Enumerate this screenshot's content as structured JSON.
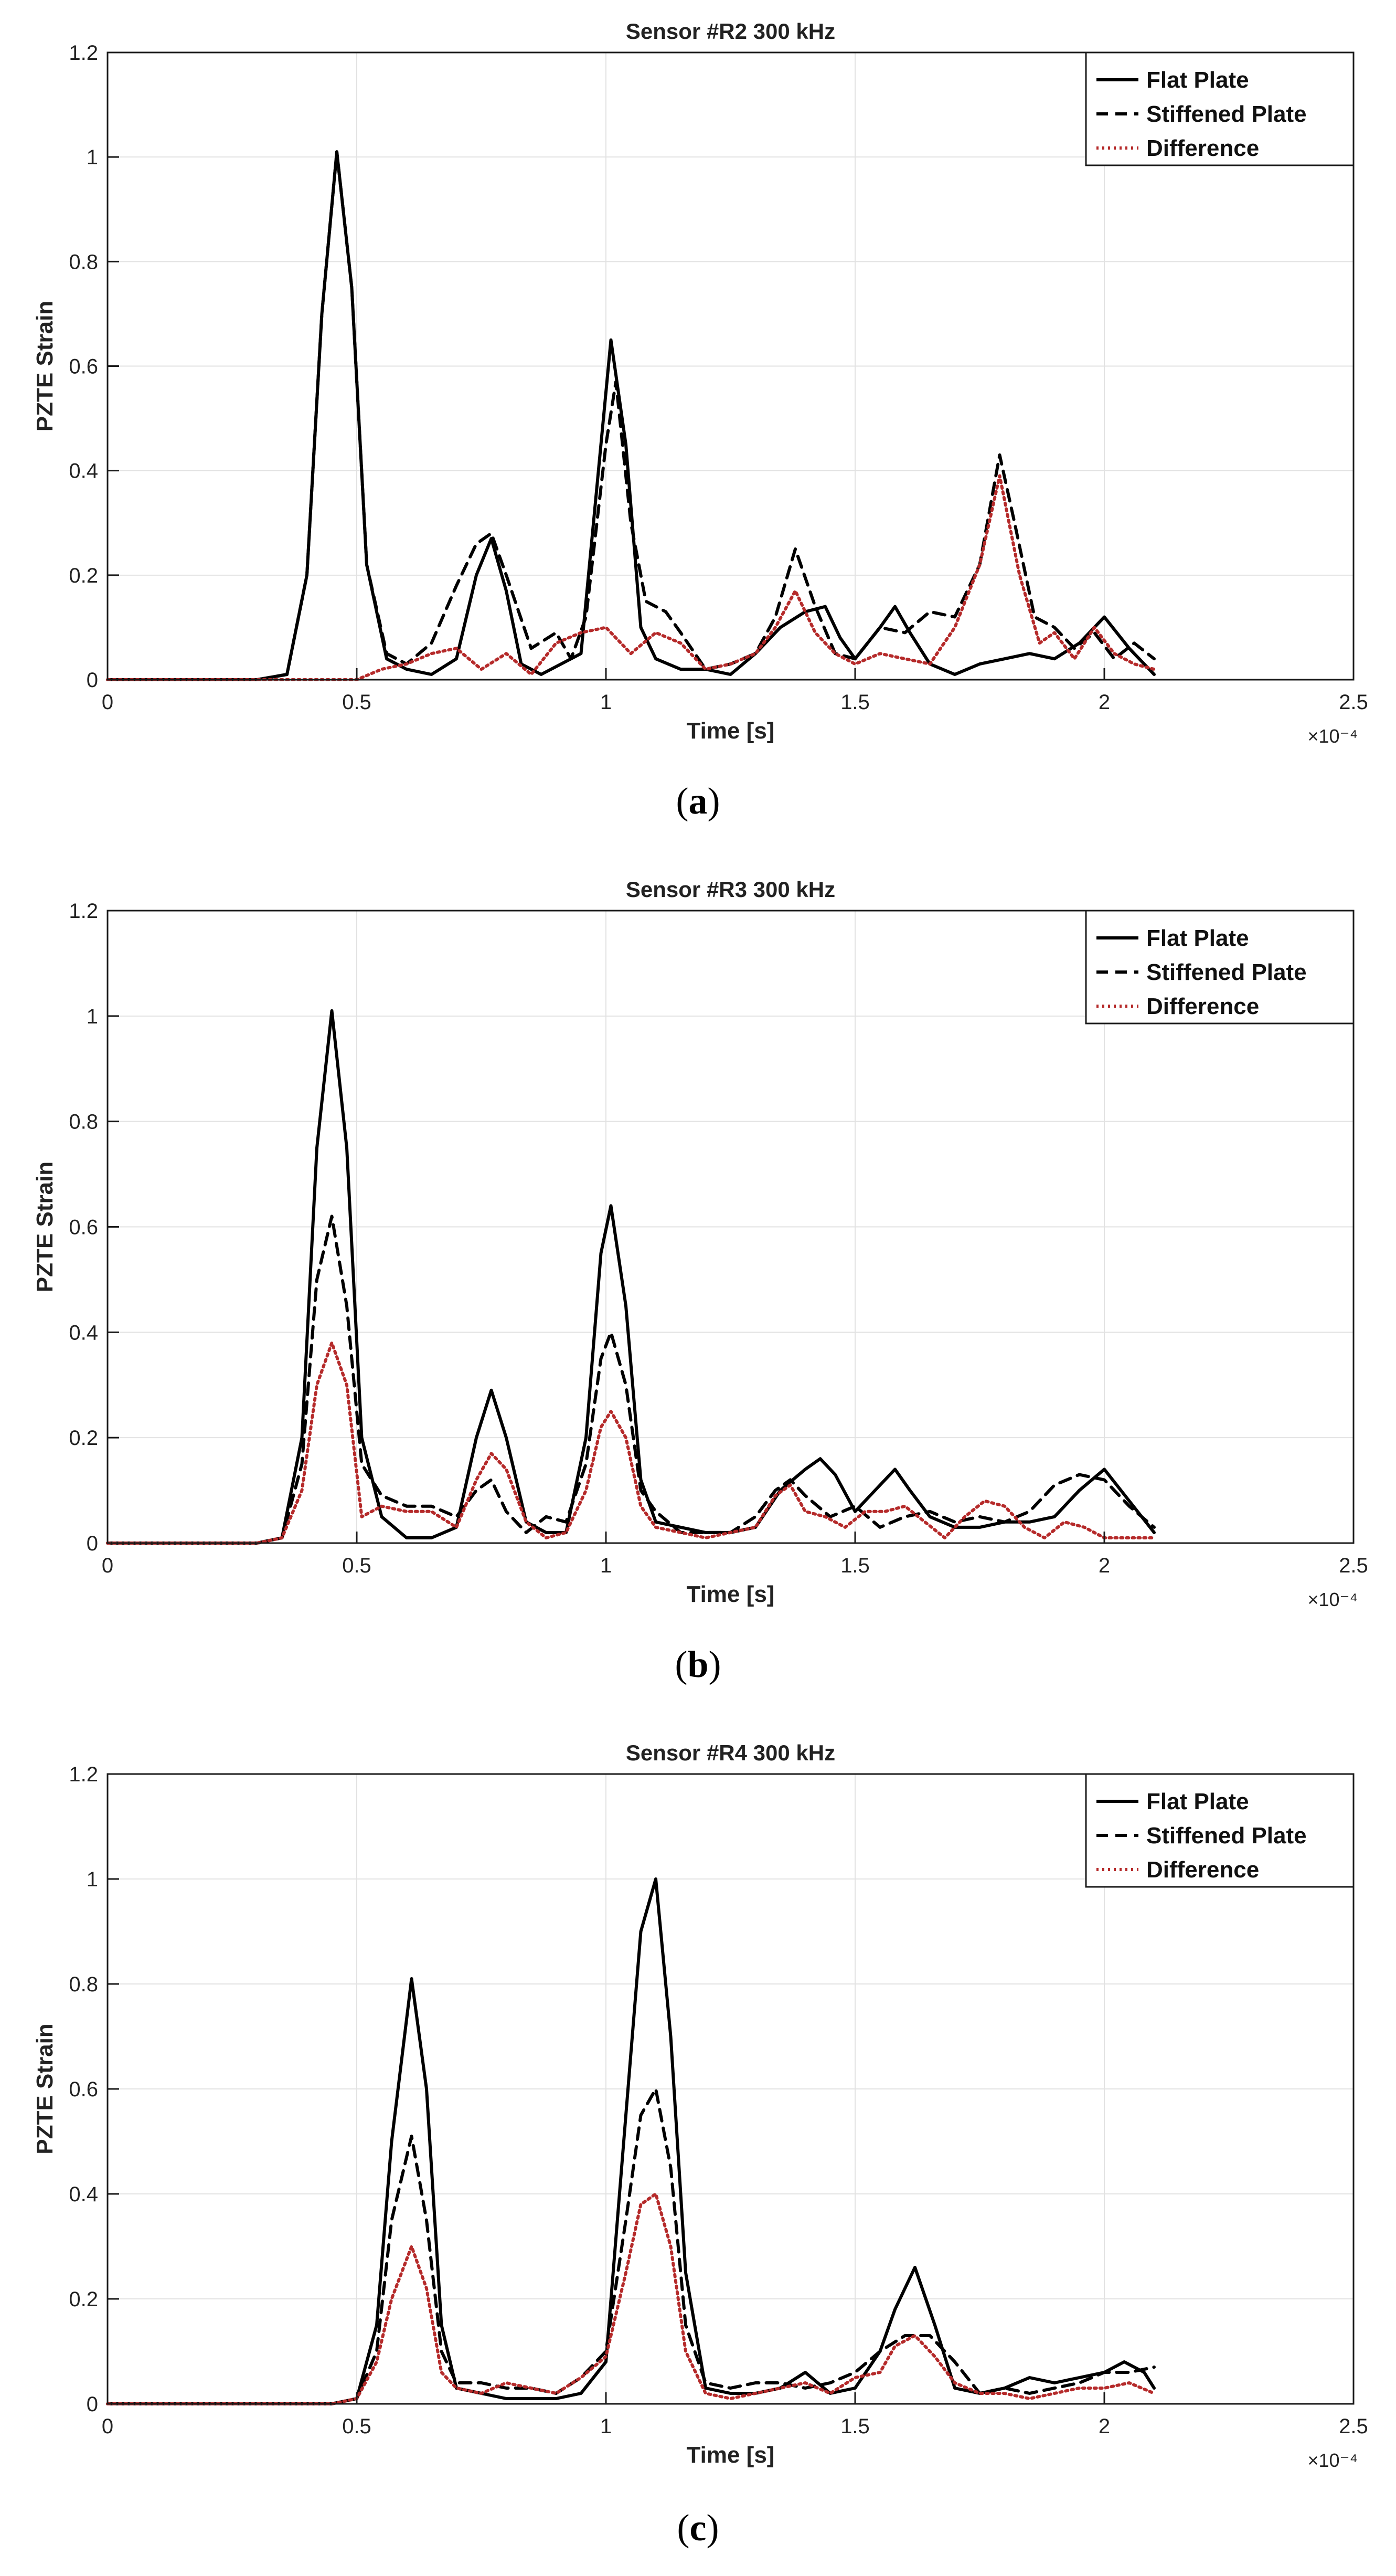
{
  "chart_data": [
    {
      "type": "line",
      "title": "Sensor #R2 300 kHz",
      "xlabel": "Time [s]",
      "ylabel": "PZTE Strain",
      "x_exponent": "×10⁻⁴",
      "xlim": [
        0,
        2.5
      ],
      "ylim": [
        0,
        1.2
      ],
      "x_ticks": [
        "0",
        "0.5",
        "1",
        "1.5",
        "2",
        "2.5"
      ],
      "y_ticks": [
        "0",
        "0.2",
        "0.4",
        "0.6",
        "0.8",
        "1",
        "1.2"
      ],
      "grid": true,
      "legend_position": "top-right",
      "caption_open": "(",
      "caption_letter": "a",
      "caption_close": ")",
      "series": [
        {
          "name": "Flat Plate",
          "style": "solid",
          "color": "#000000",
          "x": [
            0,
            0.3,
            0.36,
            0.4,
            0.43,
            0.46,
            0.49,
            0.52,
            0.56,
            0.6,
            0.65,
            0.7,
            0.74,
            0.77,
            0.8,
            0.83,
            0.87,
            0.91,
            0.95,
            0.98,
            1.01,
            1.04,
            1.07,
            1.1,
            1.15,
            1.2,
            1.25,
            1.3,
            1.35,
            1.4,
            1.44,
            1.47,
            1.5,
            1.55,
            1.58,
            1.61,
            1.65,
            1.7,
            1.75,
            1.8,
            1.85,
            1.9,
            1.95,
            2.0,
            2.05,
            2.1
          ],
          "y": [
            0,
            0,
            0.01,
            0.2,
            0.7,
            1.01,
            0.75,
            0.22,
            0.04,
            0.02,
            0.01,
            0.04,
            0.2,
            0.27,
            0.17,
            0.03,
            0.01,
            0.03,
            0.05,
            0.35,
            0.65,
            0.45,
            0.1,
            0.04,
            0.02,
            0.02,
            0.01,
            0.05,
            0.1,
            0.13,
            0.14,
            0.08,
            0.04,
            0.1,
            0.14,
            0.09,
            0.03,
            0.01,
            0.03,
            0.04,
            0.05,
            0.04,
            0.07,
            0.12,
            0.06,
            0.01
          ]
        },
        {
          "name": "Stiffened Plate",
          "style": "dashed",
          "color": "#000000",
          "x": [
            0,
            0.3,
            0.36,
            0.4,
            0.43,
            0.46,
            0.49,
            0.52,
            0.56,
            0.6,
            0.65,
            0.7,
            0.74,
            0.77,
            0.8,
            0.85,
            0.9,
            0.93,
            0.96,
            1.0,
            1.02,
            1.05,
            1.08,
            1.12,
            1.15,
            1.2,
            1.25,
            1.3,
            1.34,
            1.38,
            1.42,
            1.46,
            1.5,
            1.55,
            1.6,
            1.65,
            1.7,
            1.75,
            1.79,
            1.82,
            1.86,
            1.9,
            1.94,
            1.98,
            2.02,
            2.06,
            2.1
          ],
          "y": [
            0,
            0,
            0.01,
            0.2,
            0.7,
            1.01,
            0.75,
            0.22,
            0.05,
            0.03,
            0.07,
            0.18,
            0.26,
            0.28,
            0.2,
            0.06,
            0.09,
            0.04,
            0.12,
            0.45,
            0.57,
            0.3,
            0.15,
            0.13,
            0.09,
            0.02,
            0.03,
            0.05,
            0.12,
            0.25,
            0.14,
            0.05,
            0.04,
            0.1,
            0.09,
            0.13,
            0.12,
            0.22,
            0.43,
            0.3,
            0.12,
            0.1,
            0.06,
            0.09,
            0.04,
            0.07,
            0.04
          ]
        },
        {
          "name": "Difference",
          "style": "dotted",
          "color": "#b52a2a",
          "x": [
            0,
            0.5,
            0.55,
            0.6,
            0.65,
            0.7,
            0.75,
            0.8,
            0.85,
            0.9,
            0.95,
            1.0,
            1.05,
            1.1,
            1.15,
            1.2,
            1.25,
            1.3,
            1.34,
            1.38,
            1.42,
            1.46,
            1.5,
            1.55,
            1.6,
            1.65,
            1.7,
            1.75,
            1.79,
            1.83,
            1.87,
            1.9,
            1.94,
            1.98,
            2.02,
            2.06,
            2.1
          ],
          "y": [
            0,
            0,
            0.02,
            0.03,
            0.05,
            0.06,
            0.02,
            0.05,
            0.01,
            0.07,
            0.09,
            0.1,
            0.05,
            0.09,
            0.07,
            0.02,
            0.03,
            0.05,
            0.1,
            0.17,
            0.09,
            0.05,
            0.03,
            0.05,
            0.04,
            0.03,
            0.1,
            0.22,
            0.39,
            0.2,
            0.07,
            0.09,
            0.04,
            0.1,
            0.05,
            0.03,
            0.02
          ]
        }
      ]
    },
    {
      "type": "line",
      "title": "Sensor #R3 300 kHz",
      "xlabel": "Time [s]",
      "ylabel": "PZTE Strain",
      "x_exponent": "×10⁻⁴",
      "xlim": [
        0,
        2.5
      ],
      "ylim": [
        0,
        1.2
      ],
      "x_ticks": [
        "0",
        "0.5",
        "1",
        "1.5",
        "2",
        "2.5"
      ],
      "y_ticks": [
        "0",
        "0.2",
        "0.4",
        "0.6",
        "0.8",
        "1",
        "1.2"
      ],
      "grid": true,
      "legend_position": "top-right",
      "caption_open": "(",
      "caption_letter": "b",
      "caption_close": ")",
      "series": [
        {
          "name": "Flat Plate",
          "style": "solid",
          "color": "#000000",
          "x": [
            0,
            0.3,
            0.35,
            0.39,
            0.42,
            0.45,
            0.48,
            0.51,
            0.55,
            0.6,
            0.65,
            0.7,
            0.74,
            0.77,
            0.8,
            0.84,
            0.88,
            0.92,
            0.96,
            0.99,
            1.01,
            1.04,
            1.07,
            1.1,
            1.15,
            1.2,
            1.25,
            1.3,
            1.35,
            1.4,
            1.43,
            1.46,
            1.5,
            1.55,
            1.58,
            1.61,
            1.65,
            1.7,
            1.75,
            1.8,
            1.85,
            1.9,
            1.95,
            2.0,
            2.05,
            2.1
          ],
          "y": [
            0,
            0,
            0.01,
            0.2,
            0.75,
            1.01,
            0.75,
            0.2,
            0.05,
            0.01,
            0.01,
            0.03,
            0.2,
            0.29,
            0.2,
            0.04,
            0.02,
            0.02,
            0.2,
            0.55,
            0.64,
            0.45,
            0.12,
            0.04,
            0.03,
            0.02,
            0.02,
            0.03,
            0.1,
            0.14,
            0.16,
            0.13,
            0.06,
            0.11,
            0.14,
            0.1,
            0.05,
            0.03,
            0.03,
            0.04,
            0.04,
            0.05,
            0.1,
            0.14,
            0.08,
            0.02
          ]
        },
        {
          "name": "Stiffened Plate",
          "style": "dashed",
          "color": "#000000",
          "x": [
            0,
            0.3,
            0.35,
            0.39,
            0.42,
            0.45,
            0.48,
            0.51,
            0.55,
            0.6,
            0.65,
            0.7,
            0.74,
            0.77,
            0.8,
            0.84,
            0.88,
            0.92,
            0.96,
            0.99,
            1.01,
            1.04,
            1.07,
            1.1,
            1.15,
            1.2,
            1.25,
            1.3,
            1.34,
            1.37,
            1.4,
            1.45,
            1.5,
            1.55,
            1.6,
            1.65,
            1.7,
            1.75,
            1.8,
            1.85,
            1.9,
            1.95,
            2.0,
            2.05,
            2.1
          ],
          "y": [
            0,
            0,
            0.01,
            0.15,
            0.5,
            0.62,
            0.45,
            0.15,
            0.09,
            0.07,
            0.07,
            0.05,
            0.1,
            0.12,
            0.06,
            0.02,
            0.05,
            0.04,
            0.15,
            0.35,
            0.4,
            0.3,
            0.1,
            0.06,
            0.02,
            0.02,
            0.02,
            0.05,
            0.1,
            0.12,
            0.09,
            0.05,
            0.07,
            0.03,
            0.05,
            0.06,
            0.04,
            0.05,
            0.04,
            0.06,
            0.11,
            0.13,
            0.12,
            0.07,
            0.03
          ]
        },
        {
          "name": "Difference",
          "style": "dotted",
          "color": "#b52a2a",
          "x": [
            0,
            0.3,
            0.35,
            0.39,
            0.42,
            0.45,
            0.48,
            0.51,
            0.55,
            0.6,
            0.65,
            0.7,
            0.74,
            0.77,
            0.8,
            0.84,
            0.88,
            0.92,
            0.96,
            0.99,
            1.01,
            1.04,
            1.07,
            1.1,
            1.15,
            1.2,
            1.25,
            1.3,
            1.34,
            1.37,
            1.4,
            1.44,
            1.48,
            1.52,
            1.56,
            1.6,
            1.64,
            1.68,
            1.72,
            1.76,
            1.8,
            1.84,
            1.88,
            1.92,
            1.96,
            2.0,
            2.05,
            2.1
          ],
          "y": [
            0,
            0,
            0.01,
            0.1,
            0.3,
            0.38,
            0.3,
            0.05,
            0.07,
            0.06,
            0.06,
            0.03,
            0.12,
            0.17,
            0.14,
            0.04,
            0.01,
            0.02,
            0.1,
            0.22,
            0.25,
            0.2,
            0.07,
            0.03,
            0.02,
            0.01,
            0.02,
            0.03,
            0.09,
            0.11,
            0.06,
            0.05,
            0.03,
            0.06,
            0.06,
            0.07,
            0.04,
            0.01,
            0.05,
            0.08,
            0.07,
            0.03,
            0.01,
            0.04,
            0.03,
            0.01,
            0.01,
            0.01
          ]
        }
      ]
    },
    {
      "type": "line",
      "title": "Sensor #R4 300 kHz",
      "xlabel": "Time [s]",
      "ylabel": "PZTE Strain",
      "x_exponent": "×10⁻⁴",
      "xlim": [
        0,
        2.5
      ],
      "ylim": [
        0,
        1.2
      ],
      "x_ticks": [
        "0",
        "0.5",
        "1",
        "1.5",
        "2",
        "2.5"
      ],
      "y_ticks": [
        "0",
        "0.2",
        "0.4",
        "0.6",
        "0.8",
        "1",
        "1.2"
      ],
      "grid": true,
      "legend_position": "top-right",
      "caption_open": "(",
      "caption_letter": "c",
      "caption_close": ")",
      "series": [
        {
          "name": "Flat Plate",
          "style": "solid",
          "color": "#000000",
          "x": [
            0,
            0.45,
            0.5,
            0.54,
            0.57,
            0.61,
            0.64,
            0.67,
            0.7,
            0.75,
            0.8,
            0.85,
            0.9,
            0.95,
            1.0,
            1.04,
            1.07,
            1.1,
            1.13,
            1.16,
            1.2,
            1.25,
            1.3,
            1.35,
            1.4,
            1.45,
            1.5,
            1.55,
            1.58,
            1.62,
            1.66,
            1.7,
            1.75,
            1.8,
            1.85,
            1.9,
            1.95,
            2.0,
            2.04,
            2.08,
            2.1
          ],
          "y": [
            0,
            0,
            0.01,
            0.15,
            0.5,
            0.81,
            0.6,
            0.15,
            0.03,
            0.02,
            0.01,
            0.01,
            0.01,
            0.02,
            0.08,
            0.55,
            0.9,
            1.0,
            0.7,
            0.25,
            0.03,
            0.02,
            0.02,
            0.03,
            0.06,
            0.02,
            0.03,
            0.1,
            0.18,
            0.26,
            0.15,
            0.03,
            0.02,
            0.03,
            0.05,
            0.04,
            0.05,
            0.06,
            0.08,
            0.06,
            0.03
          ]
        },
        {
          "name": "Stiffened Plate",
          "style": "dashed",
          "color": "#000000",
          "x": [
            0,
            0.45,
            0.5,
            0.54,
            0.57,
            0.61,
            0.64,
            0.67,
            0.7,
            0.75,
            0.8,
            0.85,
            0.9,
            0.95,
            1.0,
            1.04,
            1.07,
            1.1,
            1.13,
            1.16,
            1.2,
            1.25,
            1.3,
            1.35,
            1.4,
            1.45,
            1.5,
            1.55,
            1.6,
            1.65,
            1.7,
            1.75,
            1.8,
            1.85,
            1.9,
            1.95,
            2.0,
            2.05,
            2.1
          ],
          "y": [
            0,
            0,
            0.01,
            0.1,
            0.35,
            0.51,
            0.35,
            0.1,
            0.04,
            0.04,
            0.03,
            0.03,
            0.02,
            0.05,
            0.1,
            0.35,
            0.55,
            0.6,
            0.45,
            0.15,
            0.04,
            0.03,
            0.04,
            0.04,
            0.03,
            0.04,
            0.06,
            0.1,
            0.13,
            0.13,
            0.08,
            0.02,
            0.03,
            0.02,
            0.03,
            0.04,
            0.06,
            0.06,
            0.07
          ]
        },
        {
          "name": "Difference",
          "style": "dotted",
          "color": "#b52a2a",
          "x": [
            0,
            0.45,
            0.5,
            0.54,
            0.57,
            0.61,
            0.64,
            0.67,
            0.7,
            0.75,
            0.8,
            0.85,
            0.9,
            0.95,
            1.0,
            1.04,
            1.07,
            1.1,
            1.13,
            1.16,
            1.2,
            1.25,
            1.3,
            1.35,
            1.4,
            1.45,
            1.5,
            1.55,
            1.58,
            1.62,
            1.66,
            1.7,
            1.75,
            1.8,
            1.85,
            1.9,
            1.95,
            2.0,
            2.05,
            2.1
          ],
          "y": [
            0,
            0,
            0.01,
            0.08,
            0.2,
            0.3,
            0.22,
            0.06,
            0.03,
            0.02,
            0.04,
            0.03,
            0.02,
            0.05,
            0.09,
            0.25,
            0.38,
            0.4,
            0.3,
            0.1,
            0.02,
            0.01,
            0.02,
            0.03,
            0.04,
            0.02,
            0.05,
            0.06,
            0.11,
            0.13,
            0.09,
            0.04,
            0.02,
            0.02,
            0.01,
            0.02,
            0.03,
            0.03,
            0.04,
            0.02
          ]
        }
      ]
    }
  ]
}
